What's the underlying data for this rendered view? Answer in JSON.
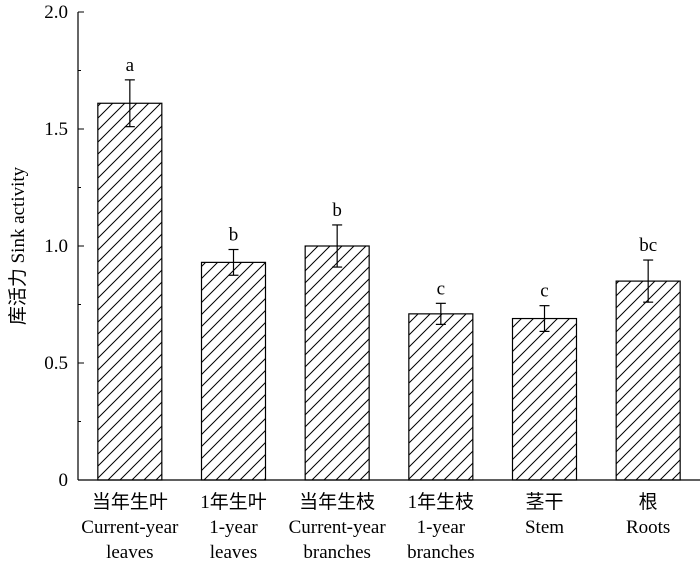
{
  "chart_data": {
    "type": "bar",
    "title": "",
    "xlabel": "",
    "ylabel": "库活力 Sink activity",
    "ylim": [
      0,
      2.0
    ],
    "yticks": [
      "0",
      "0.5",
      "1.0",
      "1.5",
      "2.0"
    ],
    "ytick_values": [
      0,
      0.5,
      1.0,
      1.5,
      2.0
    ],
    "grid": false,
    "legend": "none",
    "bar_fill": "hatched",
    "categories": [
      {
        "cn": "当年生叶",
        "en": [
          "Current-year",
          "leaves"
        ]
      },
      {
        "cn": "1年生叶",
        "en": [
          "1-year",
          "leaves"
        ]
      },
      {
        "cn": "当年生枝",
        "en": [
          "Current-year",
          "branches"
        ]
      },
      {
        "cn": "1年生枝",
        "en": [
          "1-year",
          "branches"
        ]
      },
      {
        "cn": "茎干",
        "en": [
          "Stem"
        ]
      },
      {
        "cn": "根",
        "en": [
          "Roots"
        ]
      }
    ],
    "values": [
      1.61,
      0.93,
      1.0,
      0.71,
      0.69,
      0.85
    ],
    "errors": [
      0.1,
      0.055,
      0.09,
      0.045,
      0.055,
      0.09
    ],
    "significance": [
      "a",
      "b",
      "b",
      "c",
      "c",
      "bc"
    ]
  }
}
